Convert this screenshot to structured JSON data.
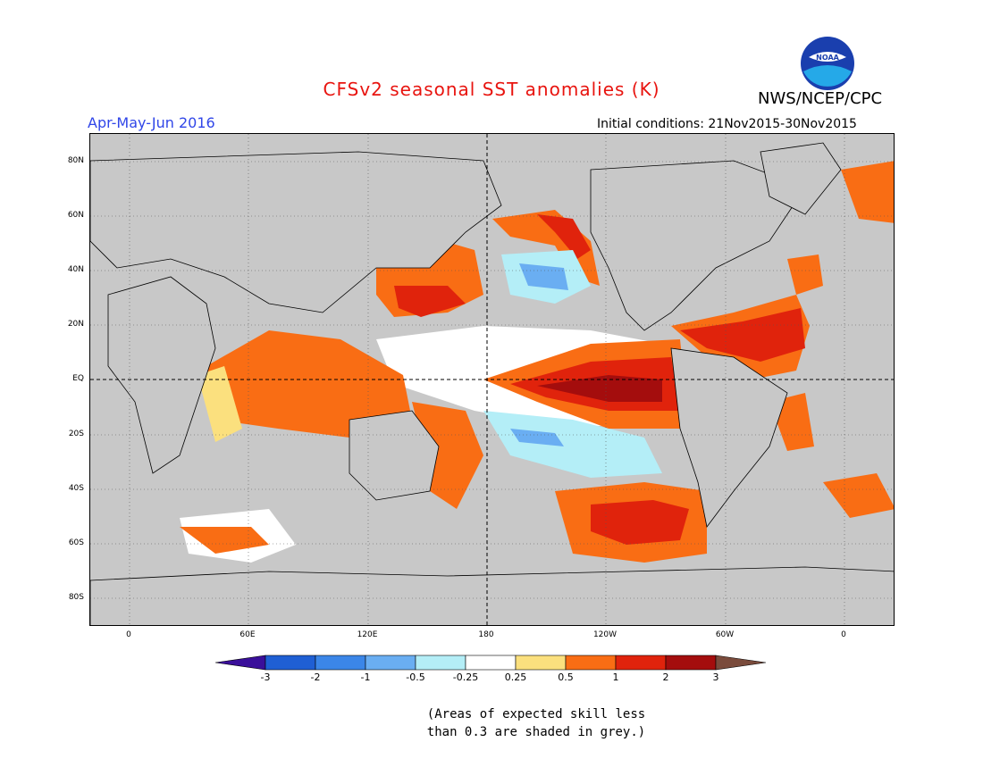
{
  "header": {
    "title": "CFSv2 seasonal SST anomalies (K)",
    "period": "Apr-May-Jun 2016",
    "initial_conditions": "Initial conditions: 21Nov2015-30Nov2015",
    "agency": "NWS/NCEP/CPC",
    "logo_text": "NOAA"
  },
  "map": {
    "lat_labels": [
      "80N",
      "60N",
      "40N",
      "20N",
      "EQ",
      "20S",
      "40S",
      "60S",
      "80S"
    ],
    "lon_labels": [
      "0",
      "60E",
      "120E",
      "180",
      "120W",
      "60W",
      "0"
    ]
  },
  "colorbar": {
    "labels": [
      "-3",
      "-2",
      "-1",
      "-0.5",
      "-0.25",
      "0.25",
      "0.5",
      "1",
      "2",
      "3"
    ],
    "colors": [
      "#3a0f9a",
      "#1f5fd4",
      "#3b86e8",
      "#6aaef2",
      "#b4eef7",
      "#ffffff",
      "#fbe07e",
      "#f96d14",
      "#e0230c",
      "#a40d0d",
      "#7a4b3c"
    ]
  },
  "footnote": {
    "line1": "(Areas of expected skill less",
    "line2": "than 0.3 are shaded in grey.)"
  }
}
